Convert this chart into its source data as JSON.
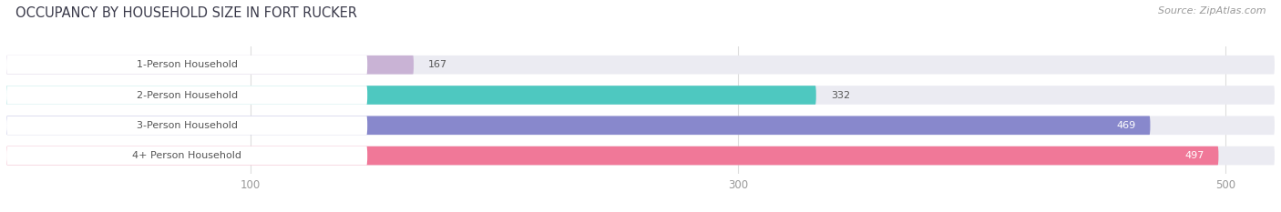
{
  "title": "OCCUPANCY BY HOUSEHOLD SIZE IN FORT RUCKER",
  "source": "Source: ZipAtlas.com",
  "categories": [
    "1-Person Household",
    "2-Person Household",
    "3-Person Household",
    "4+ Person Household"
  ],
  "values": [
    167,
    332,
    469,
    497
  ],
  "bar_colors": [
    "#c9b3d5",
    "#4ec8c0",
    "#8888cc",
    "#f07898"
  ],
  "xlim": [
    0,
    520
  ],
  "xticks": [
    100,
    300,
    500
  ],
  "fig_width": 14.06,
  "fig_height": 2.33,
  "background_color": "#ffffff",
  "bar_bg_color": "#ebebf2",
  "label_bg_color": "#ffffff",
  "title_color": "#3a3a4a",
  "source_color": "#999999",
  "tick_color": "#999999",
  "grid_color": "#dddddd",
  "label_text_color": "#555555",
  "value_text_color_dark": "#555555",
  "value_text_color_light": "#ffffff"
}
